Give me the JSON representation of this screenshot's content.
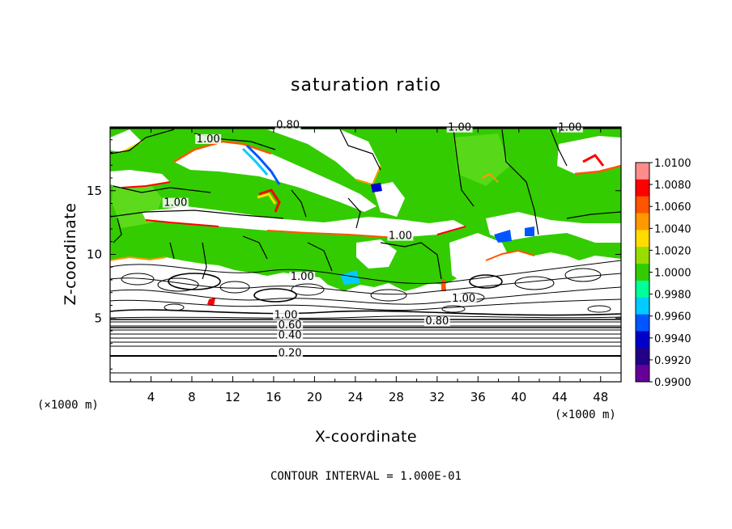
{
  "chart_data": {
    "type": "heatmap",
    "title": "saturation ratio",
    "xlabel": "X-coordinate",
    "ylabel": "Z-coordinate",
    "x_unit": "(×1000 m)",
    "y_unit": "(×1000 m)",
    "xlim": [
      0,
      50
    ],
    "ylim": [
      0,
      20
    ],
    "x_ticks": [
      "4",
      "8",
      "12",
      "16",
      "20",
      "24",
      "28",
      "32",
      "36",
      "40",
      "44",
      "48"
    ],
    "x_tick_values": [
      4,
      8,
      12,
      16,
      20,
      24,
      28,
      32,
      36,
      40,
      44,
      48
    ],
    "y_ticks": [
      "5",
      "10",
      "15"
    ],
    "y_tick_values": [
      5,
      10,
      15
    ],
    "contour_labels": [
      {
        "text": "0.80",
        "x": 17.4,
        "y": 19.9
      },
      {
        "text": "1.00",
        "x": 34.2,
        "y": 19.7
      },
      {
        "text": "1.00",
        "x": 45.0,
        "y": 19.7
      },
      {
        "text": "1.00",
        "x": 9.6,
        "y": 18.8
      },
      {
        "text": "1.00",
        "x": 6.4,
        "y": 13.8
      },
      {
        "text": "1.00",
        "x": 28.4,
        "y": 11.2
      },
      {
        "text": "1.00",
        "x": 18.8,
        "y": 8.0
      },
      {
        "text": "1.00",
        "x": 34.6,
        "y": 6.3
      },
      {
        "text": "1.00",
        "x": 17.2,
        "y": 5.0
      },
      {
        "text": "0.80",
        "x": 32.0,
        "y": 4.5
      },
      {
        "text": "0.60",
        "x": 17.6,
        "y": 4.2
      },
      {
        "text": "0.40",
        "x": 17.6,
        "y": 3.4
      },
      {
        "text": "0.20",
        "x": 17.6,
        "y": 2.0
      }
    ],
    "colorbar": {
      "labels": [
        "1.0100",
        "1.0080",
        "1.0060",
        "1.0040",
        "1.0020",
        "1.0000",
        "0.9980",
        "0.9960",
        "0.9940",
        "0.9920",
        "0.9900"
      ],
      "colors": [
        "#ff8c8c",
        "#ff0000",
        "#ff5500",
        "#ff9900",
        "#ffdd00",
        "#99dd00",
        "#33cc00",
        "#00ff99",
        "#00ccff",
        "#0055ff",
        "#0000cc",
        "#220088",
        "#660099"
      ]
    },
    "background_color": "#33cc00",
    "footer": "CONTOUR INTERVAL = 1.000E-01"
  }
}
